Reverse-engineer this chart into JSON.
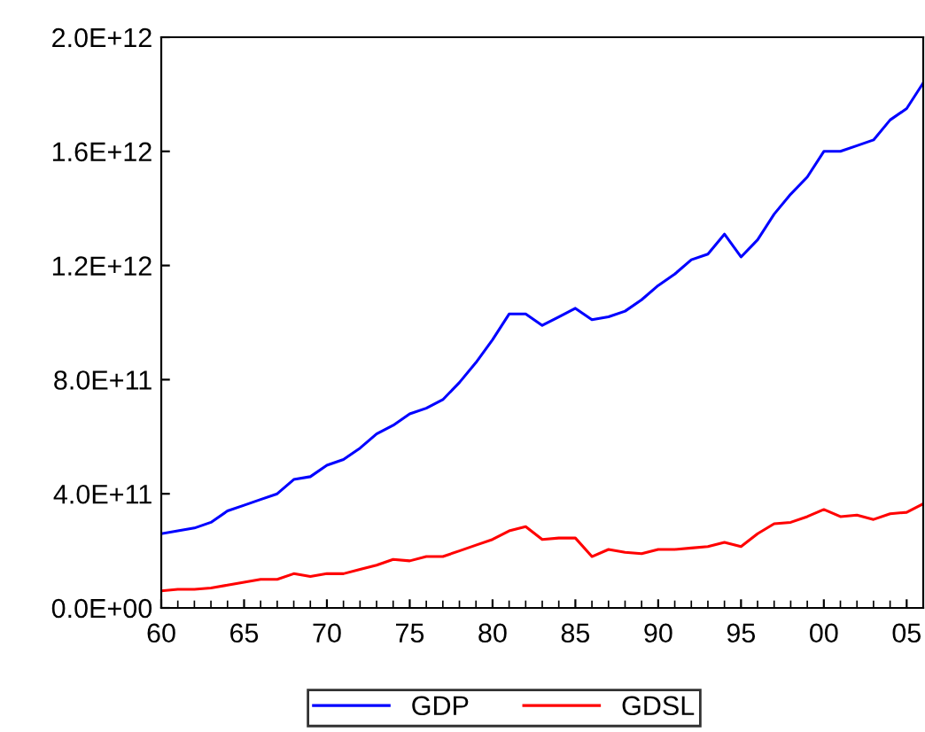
{
  "chart_data": {
    "type": "line",
    "x": [
      1960,
      1961,
      1962,
      1963,
      1964,
      1965,
      1966,
      1967,
      1968,
      1969,
      1970,
      1971,
      1972,
      1973,
      1974,
      1975,
      1976,
      1977,
      1978,
      1979,
      1980,
      1981,
      1982,
      1983,
      1984,
      1985,
      1986,
      1987,
      1988,
      1989,
      1990,
      1991,
      1992,
      1993,
      1994,
      1995,
      1996,
      1997,
      1998,
      1999,
      2000,
      2001,
      2002,
      2003,
      2004,
      2005,
      2006
    ],
    "series": [
      {
        "name": "GDP",
        "color": "#0000ff",
        "values": [
          260000000000.0,
          270000000000.0,
          280000000000.0,
          300000000000.0,
          340000000000.0,
          360000000000.0,
          380000000000.0,
          400000000000.0,
          450000000000.0,
          460000000000.0,
          500000000000.0,
          520000000000.0,
          560000000000.0,
          610000000000.0,
          640000000000.0,
          680000000000.0,
          700000000000.0,
          730000000000.0,
          790000000000.0,
          860000000000.0,
          940000000000.0,
          1030000000000.0,
          1030000000000.0,
          990000000000.0,
          1020000000000.0,
          1050000000000.0,
          1010000000000.0,
          1020000000000.0,
          1040000000000.0,
          1080000000000.0,
          1130000000000.0,
          1170000000000.0,
          1220000000000.0,
          1240000000000.0,
          1310000000000.0,
          1230000000000.0,
          1290000000000.0,
          1380000000000.0,
          1450000000000.0,
          1510000000000.0,
          1600000000000.0,
          1600000000000.0,
          1620000000000.0,
          1640000000000.0,
          1710000000000.0,
          1750000000000.0,
          1840000000000.0
        ]
      },
      {
        "name": "GDSL",
        "color": "#ff0000",
        "values": [
          60000000000.0,
          65000000000.0,
          65000000000.0,
          70000000000.0,
          80000000000.0,
          90000000000.0,
          100000000000.0,
          100000000000.0,
          120000000000.0,
          110000000000.0,
          120000000000.0,
          120000000000.0,
          135000000000.0,
          150000000000.0,
          170000000000.0,
          165000000000.0,
          180000000000.0,
          180000000000.0,
          200000000000.0,
          220000000000.0,
          240000000000.0,
          270000000000.0,
          285000000000.0,
          240000000000.0,
          245000000000.0,
          245000000000.0,
          180000000000.0,
          205000000000.0,
          195000000000.0,
          190000000000.0,
          205000000000.0,
          205000000000.0,
          210000000000.0,
          215000000000.0,
          230000000000.0,
          215000000000.0,
          260000000000.0,
          295000000000.0,
          300000000000.0,
          320000000000.0,
          345000000000.0,
          320000000000.0,
          325000000000.0,
          310000000000.0,
          330000000000.0,
          335000000000.0,
          365000000000.0
        ]
      }
    ],
    "xlim": [
      1960,
      2006
    ],
    "xticks": [
      {
        "value": 1960,
        "label": "60"
      },
      {
        "value": 1965,
        "label": "65"
      },
      {
        "value": 1970,
        "label": "70"
      },
      {
        "value": 1975,
        "label": "75"
      },
      {
        "value": 1980,
        "label": "80"
      },
      {
        "value": 1985,
        "label": "85"
      },
      {
        "value": 1990,
        "label": "90"
      },
      {
        "value": 1995,
        "label": "95"
      },
      {
        "value": 2000,
        "label": "00"
      },
      {
        "value": 2005,
        "label": "05"
      }
    ],
    "ylim": [
      0,
      2000000000000.0
    ],
    "yticks": [
      {
        "value": 0,
        "label": "0.0E+00"
      },
      {
        "value": 400000000000.0,
        "label": "4.0E+11"
      },
      {
        "value": 800000000000.0,
        "label": "8.0E+11"
      },
      {
        "value": 1200000000000.0,
        "label": "1.2E+12"
      },
      {
        "value": 1600000000000.0,
        "label": "1.6E+12"
      },
      {
        "value": 2000000000000.0,
        "label": "2.0E+12"
      }
    ],
    "legend": "bottom",
    "grid": false,
    "marker": "none",
    "line_style": "solid"
  }
}
